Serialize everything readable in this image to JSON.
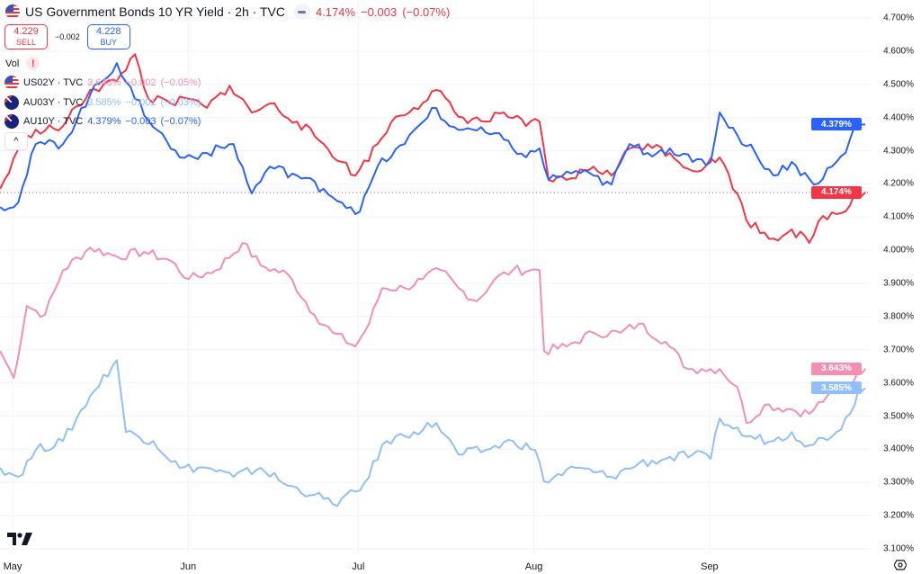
{
  "header": {
    "title": "US Government Bonds 10 YR Yield · 2h · TVC",
    "last": "4.174%",
    "change": "−0.003",
    "change_pct": "(−0.07%)"
  },
  "trade": {
    "sell_price": "4.229",
    "sell_label": "SELL",
    "spread": "−0.002",
    "buy_price": "4.228",
    "buy_label": "BUY"
  },
  "vol_label": "Vol",
  "vol_warning": "!",
  "collapse_icon": "^",
  "legend": [
    {
      "name": "US02Y · TVC",
      "value": "3.643%",
      "change": "−0.002",
      "pct": "(−0.05%)",
      "flag": "us"
    },
    {
      "name": "AU03Y · TVC",
      "value": "3.585%",
      "change": "−0.001",
      "pct": "(−0.03%)",
      "flag": "au"
    },
    {
      "name": "AU10Y · TVC",
      "value": "4.379%",
      "change": "−0.003",
      "pct": "(−0.07%)",
      "flag": "au"
    }
  ],
  "colors": {
    "us10y": "#f23645",
    "au10y": "#2962ff",
    "us02y": "#f48fb1",
    "au03y": "#90bff9"
  },
  "chart_data": {
    "type": "line",
    "title": "US Government Bonds 10 YR Yield · 2h · TVC",
    "x_unit": "days since May 1",
    "x_ticks": [
      {
        "label": "May",
        "day": 0
      },
      {
        "label": "Jun",
        "day": 31
      },
      {
        "label": "Jul",
        "day": 61
      },
      {
        "label": "Aug",
        "day": 92
      },
      {
        "label": "Sep",
        "day": 123
      }
    ],
    "y_ticks": [
      "4.700%",
      "4.600%",
      "4.500%",
      "4.400%",
      "4.300%",
      "4.200%",
      "4.100%",
      "4.000%",
      "3.900%",
      "3.800%",
      "3.700%",
      "3.600%",
      "3.500%",
      "3.400%",
      "3.300%",
      "3.200%",
      "3.100%"
    ],
    "ylim": [
      3.1,
      4.7
    ],
    "grid": true,
    "price_tags": [
      {
        "series": "AU10Y",
        "label": "4.379%",
        "value": 4.379
      },
      {
        "series": "US10Y",
        "label": "4.174%",
        "value": 4.174
      },
      {
        "series": "US02Y",
        "label": "3.643%",
        "value": 3.643
      },
      {
        "series": "AU03Y",
        "label": "3.585%",
        "value": 3.585
      }
    ],
    "series": [
      {
        "name": "US02Y",
        "color": "#f48fb1",
        "points": [
          [
            -2.2,
            3.696
          ],
          [
            0.2,
            3.615
          ],
          [
            2.5,
            3.832
          ],
          [
            5.7,
            3.805
          ],
          [
            8.9,
            3.94
          ],
          [
            13.7,
            4.008
          ],
          [
            18.4,
            3.981
          ],
          [
            23.2,
            3.995
          ],
          [
            27.9,
            3.968
          ],
          [
            31.1,
            3.913
          ],
          [
            35.9,
            3.94
          ],
          [
            40.6,
            4.022
          ],
          [
            43.8,
            3.954
          ],
          [
            48.6,
            3.927
          ],
          [
            53.3,
            3.805
          ],
          [
            56.5,
            3.751
          ],
          [
            60.5,
            3.71
          ],
          [
            62.9,
            3.778
          ],
          [
            65.2,
            3.886
          ],
          [
            69.2,
            3.886
          ],
          [
            72.4,
            3.913
          ],
          [
            75.6,
            3.94
          ],
          [
            78.7,
            3.886
          ],
          [
            81.9,
            3.846
          ],
          [
            85.1,
            3.913
          ],
          [
            88.3,
            3.94
          ],
          [
            91.4,
            3.94
          ],
          [
            93,
            3.94
          ],
          [
            93.8,
            3.696
          ],
          [
            97.8,
            3.71
          ],
          [
            102.5,
            3.751
          ],
          [
            107.3,
            3.751
          ],
          [
            110.5,
            3.778
          ],
          [
            115.2,
            3.724
          ],
          [
            119.2,
            3.642
          ],
          [
            121.6,
            3.642
          ],
          [
            124.8,
            3.642
          ],
          [
            127.9,
            3.588
          ],
          [
            129.5,
            3.479
          ],
          [
            132.7,
            3.534
          ],
          [
            137.5,
            3.52
          ],
          [
            140.6,
            3.507
          ],
          [
            143.8,
            3.561
          ],
          [
            147.8,
            3.588
          ],
          [
            149.4,
            3.642
          ],
          [
            150.5,
            3.643
          ]
        ]
      },
      {
        "name": "AU03Y",
        "color": "#90bff9",
        "points": [
          [
            -2.2,
            3.344
          ],
          [
            1,
            3.317
          ],
          [
            4.1,
            3.398
          ],
          [
            8.9,
            3.425
          ],
          [
            13.7,
            3.561
          ],
          [
            18.4,
            3.669
          ],
          [
            20,
            3.452
          ],
          [
            24.8,
            3.425
          ],
          [
            29.5,
            3.344
          ],
          [
            34.3,
            3.344
          ],
          [
            39,
            3.317
          ],
          [
            43.8,
            3.344
          ],
          [
            48.6,
            3.29
          ],
          [
            53.3,
            3.263
          ],
          [
            56.5,
            3.235
          ],
          [
            61.3,
            3.276
          ],
          [
            66,
            3.425
          ],
          [
            70.8,
            3.452
          ],
          [
            74.8,
            3.479
          ],
          [
            78.7,
            3.384
          ],
          [
            83.5,
            3.398
          ],
          [
            88.3,
            3.425
          ],
          [
            92.2,
            3.398
          ],
          [
            93.8,
            3.303
          ],
          [
            99.4,
            3.344
          ],
          [
            105.7,
            3.317
          ],
          [
            110.5,
            3.357
          ],
          [
            115.2,
            3.371
          ],
          [
            120,
            3.384
          ],
          [
            123.2,
            3.371
          ],
          [
            124.8,
            3.493
          ],
          [
            129.5,
            3.439
          ],
          [
            134.3,
            3.425
          ],
          [
            137.5,
            3.452
          ],
          [
            140.6,
            3.412
          ],
          [
            145.4,
            3.452
          ],
          [
            147.8,
            3.507
          ],
          [
            149.4,
            3.588
          ],
          [
            150.5,
            3.585
          ]
        ]
      },
      {
        "name": "US10Y",
        "color": "#f23645",
        "points": [
          [
            -2.2,
            4.185
          ],
          [
            2.5,
            4.347
          ],
          [
            8.9,
            4.374
          ],
          [
            13.7,
            4.483
          ],
          [
            18.4,
            4.51
          ],
          [
            21.6,
            4.591
          ],
          [
            24,
            4.456
          ],
          [
            27.9,
            4.442
          ],
          [
            31.1,
            4.456
          ],
          [
            34.3,
            4.429
          ],
          [
            38.3,
            4.496
          ],
          [
            42.2,
            4.415
          ],
          [
            45.4,
            4.442
          ],
          [
            50.2,
            4.388
          ],
          [
            54.9,
            4.32
          ],
          [
            58.1,
            4.266
          ],
          [
            60.5,
            4.225
          ],
          [
            64.4,
            4.32
          ],
          [
            67.6,
            4.402
          ],
          [
            70.8,
            4.429
          ],
          [
            74.8,
            4.483
          ],
          [
            78.7,
            4.402
          ],
          [
            83.5,
            4.388
          ],
          [
            86.7,
            4.415
          ],
          [
            90.6,
            4.374
          ],
          [
            93,
            4.388
          ],
          [
            94.6,
            4.212
          ],
          [
            97.8,
            4.212
          ],
          [
            102.5,
            4.252
          ],
          [
            105.7,
            4.225
          ],
          [
            108.9,
            4.307
          ],
          [
            112.1,
            4.32
          ],
          [
            116,
            4.293
          ],
          [
            120,
            4.239
          ],
          [
            124.8,
            4.28
          ],
          [
            127.9,
            4.171
          ],
          [
            129.5,
            4.09
          ],
          [
            134.3,
            4.035
          ],
          [
            137.5,
            4.063
          ],
          [
            140.6,
            4.022
          ],
          [
            143,
            4.103
          ],
          [
            147,
            4.117
          ],
          [
            148.6,
            4.171
          ],
          [
            150.5,
            4.174
          ]
        ]
      },
      {
        "name": "AU10Y",
        "color": "#2962ff",
        "points": [
          [
            -2.2,
            4.13
          ],
          [
            1,
            4.144
          ],
          [
            4.1,
            4.32
          ],
          [
            8.9,
            4.32
          ],
          [
            13.7,
            4.469
          ],
          [
            18.4,
            4.564
          ],
          [
            21.6,
            4.456
          ],
          [
            25.6,
            4.361
          ],
          [
            29.5,
            4.28
          ],
          [
            34.3,
            4.293
          ],
          [
            39,
            4.32
          ],
          [
            42.2,
            4.171
          ],
          [
            45.4,
            4.252
          ],
          [
            50.2,
            4.225
          ],
          [
            54.9,
            4.185
          ],
          [
            58.1,
            4.144
          ],
          [
            61.3,
            4.117
          ],
          [
            64.4,
            4.252
          ],
          [
            69.2,
            4.32
          ],
          [
            74,
            4.429
          ],
          [
            77.1,
            4.374
          ],
          [
            81.9,
            4.361
          ],
          [
            86.7,
            4.334
          ],
          [
            90.6,
            4.28
          ],
          [
            93,
            4.307
          ],
          [
            94.6,
            4.212
          ],
          [
            99.4,
            4.239
          ],
          [
            105.7,
            4.198
          ],
          [
            108.9,
            4.32
          ],
          [
            112.1,
            4.293
          ],
          [
            116,
            4.307
          ],
          [
            120,
            4.266
          ],
          [
            123.2,
            4.266
          ],
          [
            124.8,
            4.415
          ],
          [
            127.9,
            4.347
          ],
          [
            131.1,
            4.293
          ],
          [
            134.3,
            4.225
          ],
          [
            137.5,
            4.266
          ],
          [
            141.4,
            4.198
          ],
          [
            144.6,
            4.252
          ],
          [
            147,
            4.293
          ],
          [
            148.6,
            4.374
          ],
          [
            150.5,
            4.379
          ]
        ]
      }
    ]
  }
}
